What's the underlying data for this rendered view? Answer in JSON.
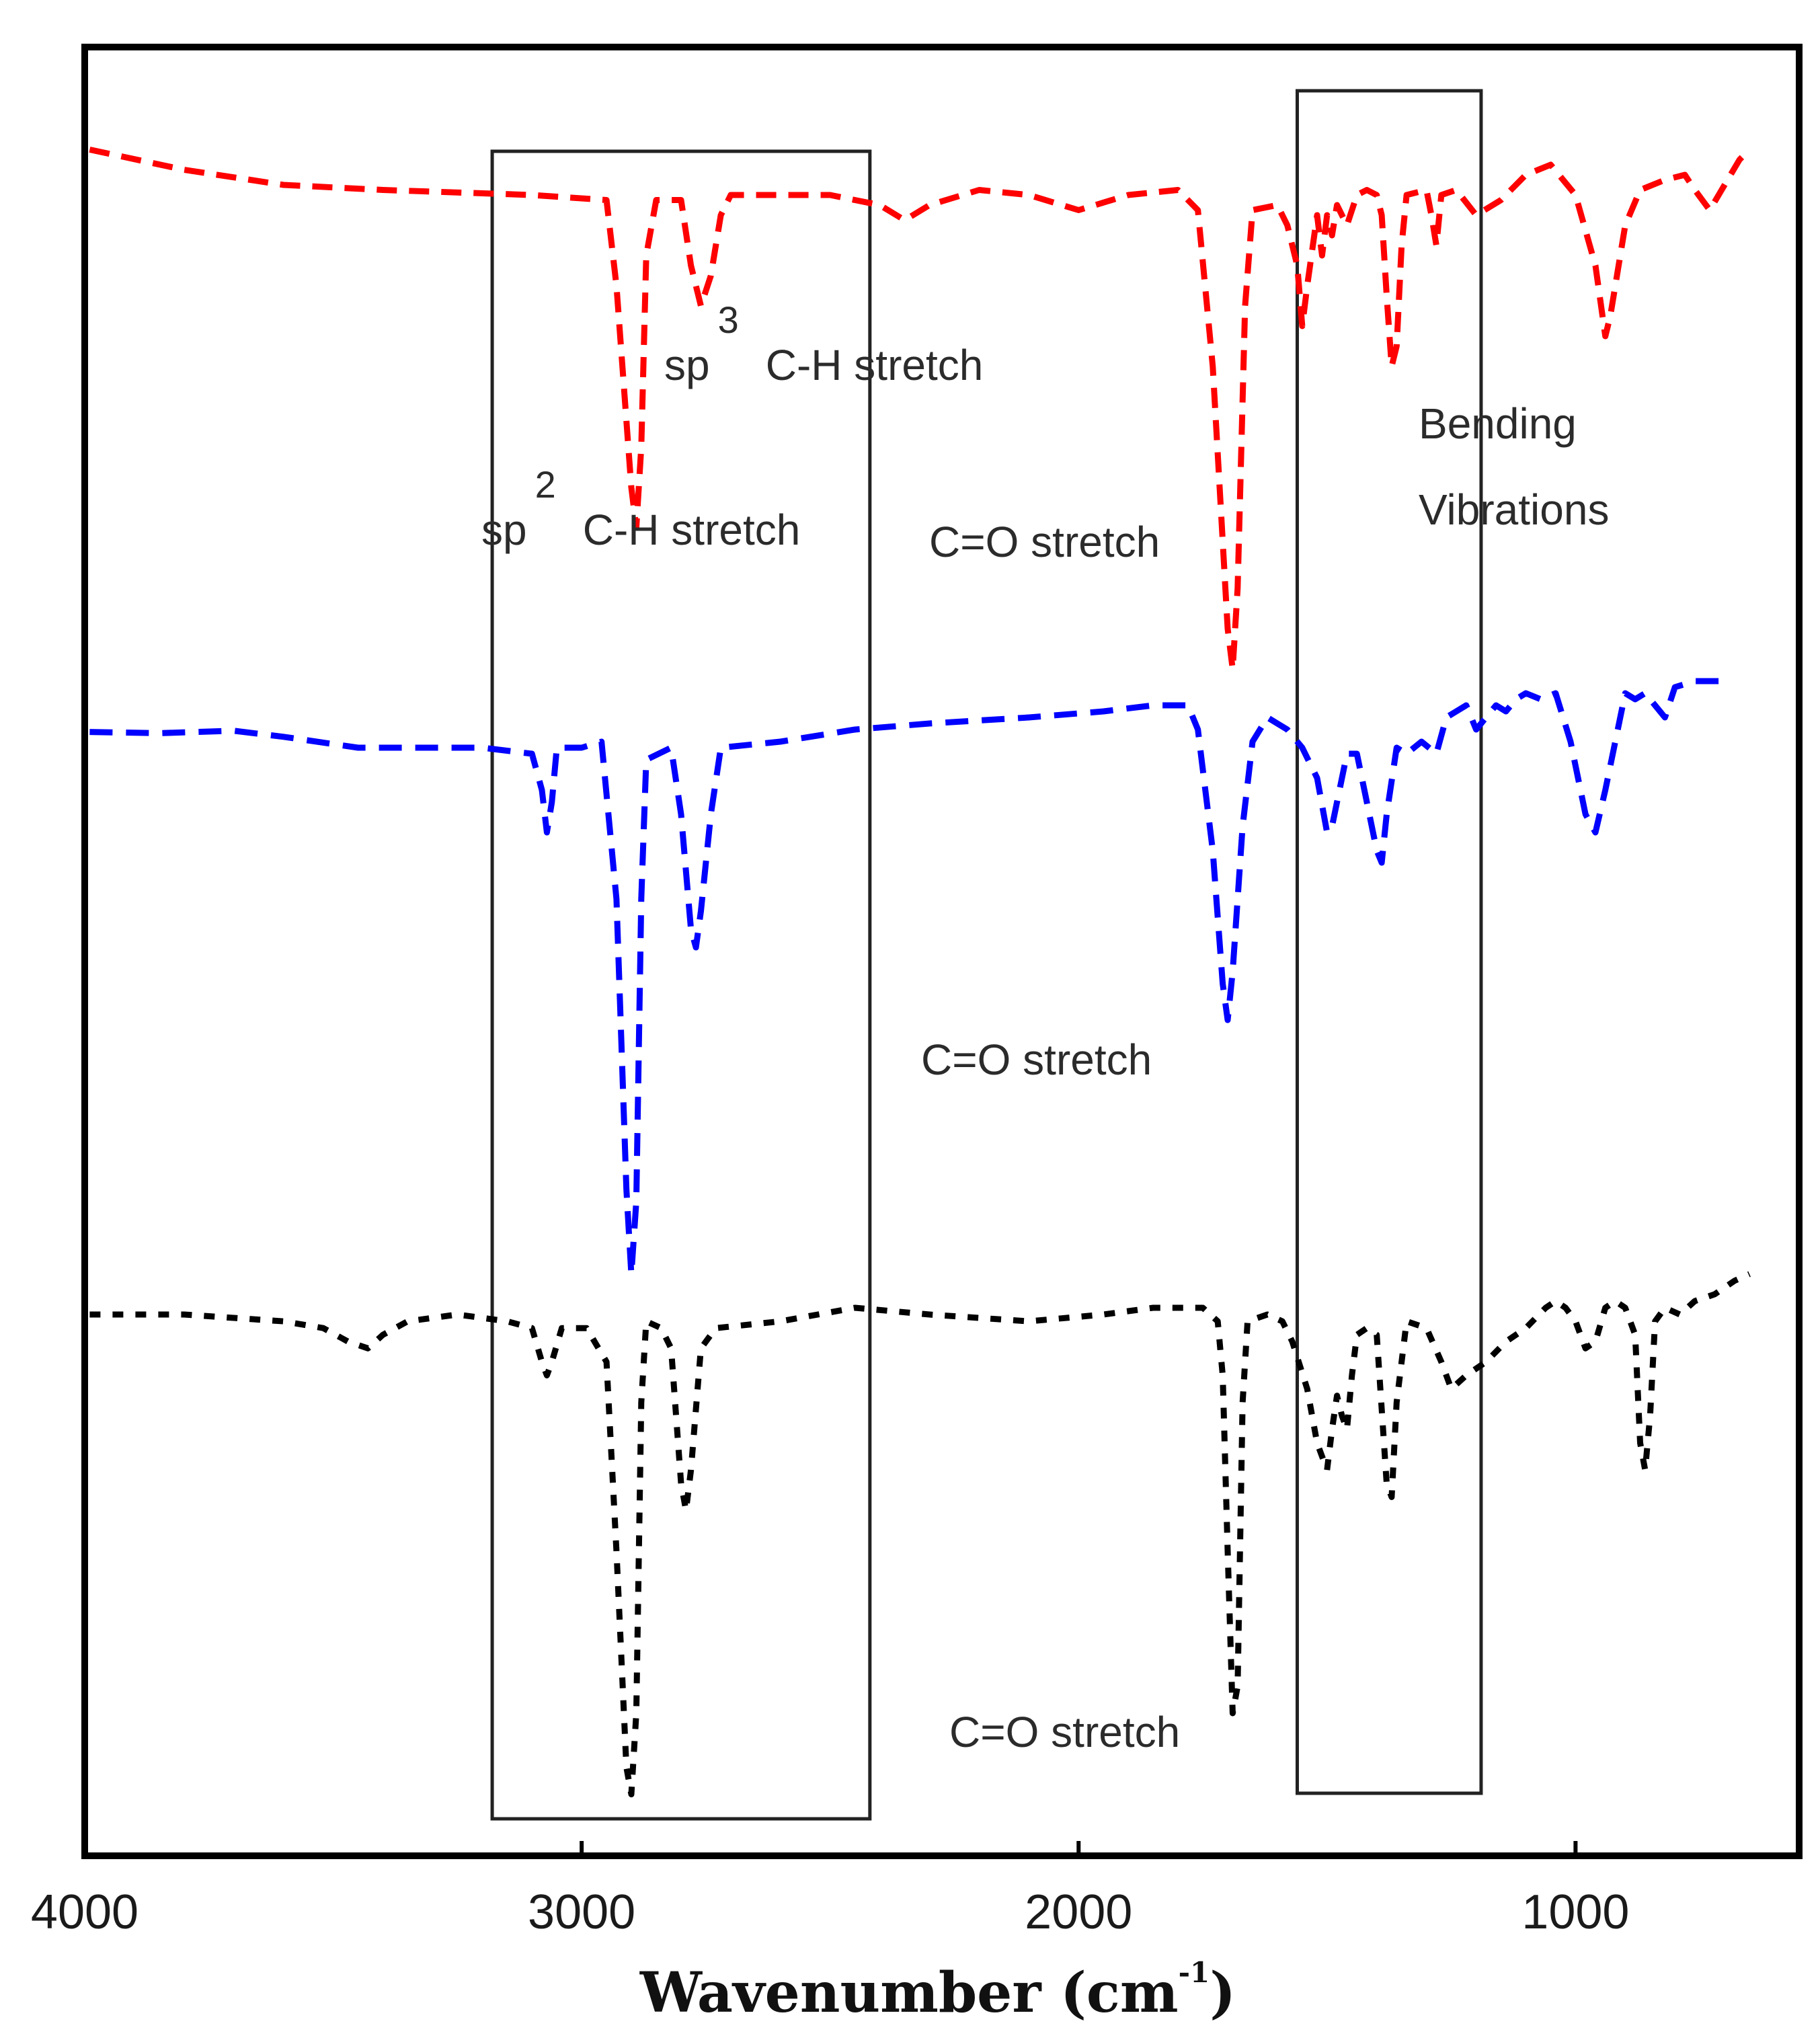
{
  "chart_data": {
    "type": "line",
    "xlabel": "Wavenumber (cm",
    "xlabel_sup": "-1",
    "xlabel_suffix": ")",
    "xlim": [
      4000,
      550
    ],
    "x_ticks": [
      4000,
      3000,
      2000,
      1000
    ],
    "x_tick_labels": [
      "4000",
      "3000",
      "2000",
      "1000"
    ],
    "y_axis": "transmittance, stacked offset, no ticks",
    "grid": false,
    "series": [
      {
        "color": "#ff0000",
        "style": "dashed",
        "points": [
          [
            3990,
            0.995
          ],
          [
            3800,
            0.975
          ],
          [
            3600,
            0.96
          ],
          [
            3400,
            0.955
          ],
          [
            3100,
            0.95
          ],
          [
            2950,
            0.945
          ],
          [
            2930,
            0.86
          ],
          [
            2900,
            0.66
          ],
          [
            2890,
            0.62
          ],
          [
            2880,
            0.7
          ],
          [
            2870,
            0.89
          ],
          [
            2850,
            0.945
          ],
          [
            2800,
            0.945
          ],
          [
            2780,
            0.88
          ],
          [
            2760,
            0.84
          ],
          [
            2740,
            0.87
          ],
          [
            2720,
            0.93
          ],
          [
            2700,
            0.95
          ],
          [
            2500,
            0.95
          ],
          [
            2400,
            0.94
          ],
          [
            2350,
            0.925
          ],
          [
            2300,
            0.94
          ],
          [
            2200,
            0.955
          ],
          [
            2100,
            0.95
          ],
          [
            2000,
            0.935
          ],
          [
            1900,
            0.95
          ],
          [
            1800,
            0.955
          ],
          [
            1760,
            0.935
          ],
          [
            1730,
            0.78
          ],
          [
            1700,
            0.52
          ],
          [
            1690,
            0.48
          ],
          [
            1680,
            0.56
          ],
          [
            1665,
            0.84
          ],
          [
            1650,
            0.935
          ],
          [
            1600,
            0.94
          ],
          [
            1580,
            0.92
          ],
          [
            1560,
            0.88
          ],
          [
            1550,
            0.82
          ],
          [
            1540,
            0.86
          ],
          [
            1520,
            0.93
          ],
          [
            1510,
            0.89
          ],
          [
            1500,
            0.93
          ],
          [
            1490,
            0.91
          ],
          [
            1480,
            0.94
          ],
          [
            1460,
            0.92
          ],
          [
            1440,
            0.95
          ],
          [
            1420,
            0.955
          ],
          [
            1400,
            0.95
          ],
          [
            1390,
            0.93
          ],
          [
            1380,
            0.85
          ],
          [
            1370,
            0.78
          ],
          [
            1360,
            0.8
          ],
          [
            1350,
            0.9
          ],
          [
            1340,
            0.95
          ],
          [
            1300,
            0.955
          ],
          [
            1290,
            0.93
          ],
          [
            1280,
            0.9
          ],
          [
            1270,
            0.95
          ],
          [
            1240,
            0.955
          ],
          [
            1200,
            0.93
          ],
          [
            1150,
            0.945
          ],
          [
            1100,
            0.97
          ],
          [
            1050,
            0.98
          ],
          [
            1000,
            0.95
          ],
          [
            960,
            0.88
          ],
          [
            940,
            0.81
          ],
          [
            930,
            0.83
          ],
          [
            900,
            0.92
          ],
          [
            870,
            0.955
          ],
          [
            820,
            0.965
          ],
          [
            780,
            0.97
          ],
          [
            760,
            0.955
          ],
          [
            730,
            0.935
          ],
          [
            700,
            0.96
          ],
          [
            670,
            0.985
          ],
          [
            650,
            0.995
          ]
        ]
      },
      {
        "color": "#0000ff",
        "style": "dashed",
        "points": [
          [
            3990,
            0.998
          ],
          [
            3850,
            0.997
          ],
          [
            3700,
            0.999
          ],
          [
            3600,
            0.994
          ],
          [
            3450,
            0.985
          ],
          [
            3300,
            0.985
          ],
          [
            3200,
            0.985
          ],
          [
            3100,
            0.98
          ],
          [
            3080,
            0.95
          ],
          [
            3070,
            0.915
          ],
          [
            3060,
            0.94
          ],
          [
            3050,
            0.985
          ],
          [
            3000,
            0.985
          ],
          [
            2960,
            0.99
          ],
          [
            2930,
            0.86
          ],
          [
            2910,
            0.62
          ],
          [
            2900,
            0.55
          ],
          [
            2890,
            0.61
          ],
          [
            2880,
            0.86
          ],
          [
            2870,
            0.975
          ],
          [
            2820,
            0.985
          ],
          [
            2800,
            0.93
          ],
          [
            2780,
            0.835
          ],
          [
            2770,
            0.82
          ],
          [
            2760,
            0.85
          ],
          [
            2740,
            0.93
          ],
          [
            2720,
            0.985
          ],
          [
            2600,
            0.99
          ],
          [
            2450,
            1.0
          ],
          [
            2300,
            1.005
          ],
          [
            2100,
            1.01
          ],
          [
            1950,
            1.015
          ],
          [
            1850,
            1.02
          ],
          [
            1780,
            1.02
          ],
          [
            1760,
            1.0
          ],
          [
            1730,
            0.9
          ],
          [
            1710,
            0.79
          ],
          [
            1700,
            0.76
          ],
          [
            1690,
            0.8
          ],
          [
            1670,
            0.92
          ],
          [
            1650,
            0.99
          ],
          [
            1620,
            1.01
          ],
          [
            1580,
            1.0
          ],
          [
            1550,
            0.985
          ],
          [
            1520,
            0.96
          ],
          [
            1500,
            0.915
          ],
          [
            1490,
            0.92
          ],
          [
            1480,
            0.94
          ],
          [
            1470,
            0.96
          ],
          [
            1460,
            0.98
          ],
          [
            1440,
            0.98
          ],
          [
            1420,
            0.94
          ],
          [
            1400,
            0.9
          ],
          [
            1390,
            0.89
          ],
          [
            1380,
            0.93
          ],
          [
            1360,
            0.985
          ],
          [
            1340,
            0.98
          ],
          [
            1310,
            0.99
          ],
          [
            1280,
            0.98
          ],
          [
            1260,
            1.01
          ],
          [
            1220,
            1.02
          ],
          [
            1200,
            1.0
          ],
          [
            1180,
            1.01
          ],
          [
            1160,
            1.02
          ],
          [
            1140,
            1.015
          ],
          [
            1120,
            1.025
          ],
          [
            1100,
            1.03
          ],
          [
            1070,
            1.025
          ],
          [
            1040,
            1.03
          ],
          [
            1010,
            0.99
          ],
          [
            980,
            0.93
          ],
          [
            960,
            0.915
          ],
          [
            940,
            0.95
          ],
          [
            920,
            0.99
          ],
          [
            900,
            1.03
          ],
          [
            880,
            1.025
          ],
          [
            860,
            1.03
          ],
          [
            820,
            1.01
          ],
          [
            800,
            1.035
          ],
          [
            760,
            1.04
          ],
          [
            700,
            1.04
          ]
        ]
      },
      {
        "color": "#000000",
        "style": "dashed",
        "points": [
          [
            3990,
            0.995
          ],
          [
            3800,
            0.995
          ],
          [
            3600,
            0.99
          ],
          [
            3520,
            0.985
          ],
          [
            3470,
            0.975
          ],
          [
            3430,
            0.97
          ],
          [
            3400,
            0.98
          ],
          [
            3350,
            0.99
          ],
          [
            3250,
            0.995
          ],
          [
            3150,
            0.99
          ],
          [
            3100,
            0.985
          ],
          [
            3080,
            0.96
          ],
          [
            3070,
            0.95
          ],
          [
            3060,
            0.96
          ],
          [
            3040,
            0.985
          ],
          [
            2990,
            0.985
          ],
          [
            2950,
            0.96
          ],
          [
            2930,
            0.82
          ],
          [
            2910,
            0.66
          ],
          [
            2900,
            0.64
          ],
          [
            2890,
            0.7
          ],
          [
            2880,
            0.93
          ],
          [
            2870,
            0.99
          ],
          [
            2840,
            0.985
          ],
          [
            2820,
            0.97
          ],
          [
            2800,
            0.87
          ],
          [
            2790,
            0.85
          ],
          [
            2780,
            0.88
          ],
          [
            2760,
            0.97
          ],
          [
            2730,
            0.985
          ],
          [
            2600,
            0.99
          ],
          [
            2450,
            1.0
          ],
          [
            2300,
            0.995
          ],
          [
            2100,
            0.99
          ],
          [
            1950,
            0.995
          ],
          [
            1850,
            1.0
          ],
          [
            1750,
            1.0
          ],
          [
            1720,
            0.99
          ],
          [
            1710,
            0.95
          ],
          [
            1700,
            0.82
          ],
          [
            1690,
            0.7
          ],
          [
            1680,
            0.72
          ],
          [
            1670,
            0.93
          ],
          [
            1660,
            0.99
          ],
          [
            1620,
            0.995
          ],
          [
            1590,
            0.99
          ],
          [
            1570,
            0.975
          ],
          [
            1540,
            0.94
          ],
          [
            1520,
            0.9
          ],
          [
            1500,
            0.88
          ],
          [
            1490,
            0.91
          ],
          [
            1480,
            0.935
          ],
          [
            1470,
            0.92
          ],
          [
            1460,
            0.91
          ],
          [
            1450,
            0.95
          ],
          [
            1440,
            0.98
          ],
          [
            1420,
            0.985
          ],
          [
            1400,
            0.98
          ],
          [
            1380,
            0.87
          ],
          [
            1370,
            0.86
          ],
          [
            1360,
            0.93
          ],
          [
            1340,
            0.99
          ],
          [
            1300,
            0.985
          ],
          [
            1270,
            0.96
          ],
          [
            1250,
            0.94
          ],
          [
            1220,
            0.95
          ],
          [
            1180,
            0.96
          ],
          [
            1140,
            0.975
          ],
          [
            1100,
            0.985
          ],
          [
            1060,
            1.0
          ],
          [
            1040,
            1.005
          ],
          [
            1020,
            1.0
          ],
          [
            1000,
            0.99
          ],
          [
            980,
            0.97
          ],
          [
            960,
            0.975
          ],
          [
            940,
            1.0
          ],
          [
            920,
            1.005
          ],
          [
            900,
            1.0
          ],
          [
            880,
            0.98
          ],
          [
            870,
            0.9
          ],
          [
            860,
            0.88
          ],
          [
            850,
            0.92
          ],
          [
            840,
            0.99
          ],
          [
            820,
            1.0
          ],
          [
            790,
            0.995
          ],
          [
            760,
            1.005
          ],
          [
            720,
            1.01
          ],
          [
            680,
            1.02
          ],
          [
            650,
            1.025
          ]
        ]
      }
    ],
    "boxes": [
      {
        "x_range": [
          3180,
          2420
        ]
      },
      {
        "x_range": [
          1560,
          1190
        ]
      }
    ],
    "annotations": [
      {
        "base": "sp",
        "sup": "3",
        "rest": "C-H stretch"
      },
      {
        "base": "sp",
        "sup": "2",
        "rest": "C-H stretch"
      },
      {
        "text": "C=O stretch"
      },
      {
        "text": "Bending"
      },
      {
        "text": "Vibrations"
      },
      {
        "text": "C=O stretch"
      },
      {
        "text": "C=O stretch"
      }
    ]
  }
}
